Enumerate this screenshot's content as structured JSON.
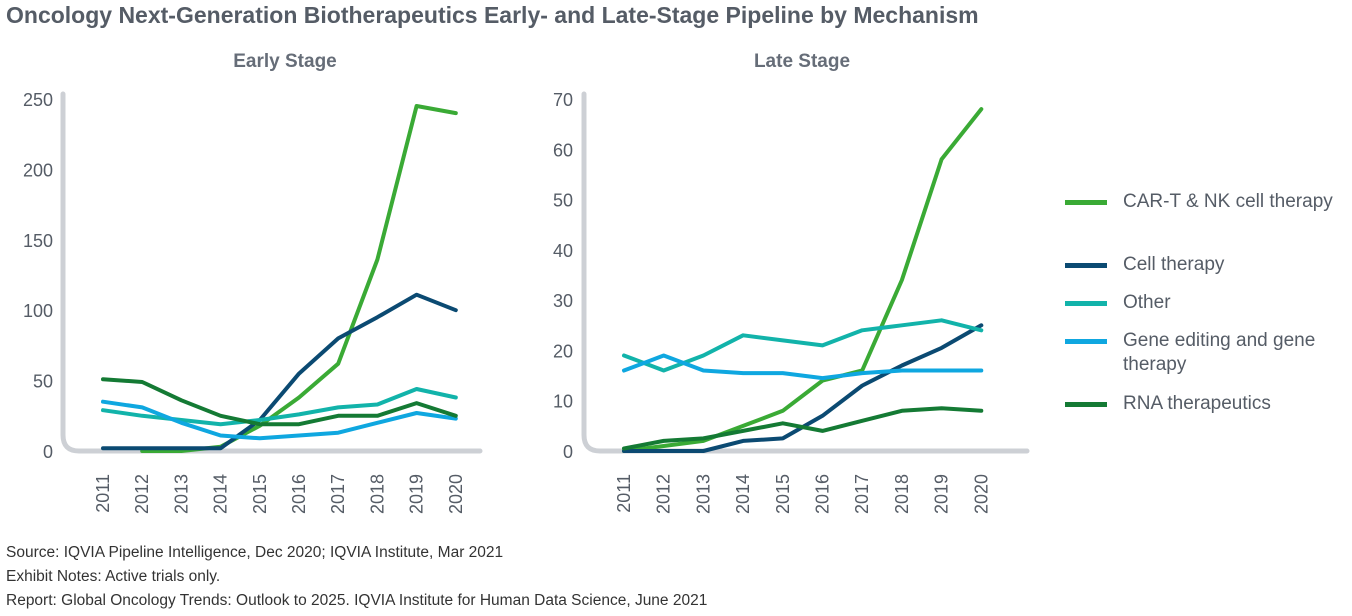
{
  "title": "Oncology Next-Generation Biotherapeutics Early- and Late-Stage Pipeline by Mechanism",
  "legend": [
    {
      "label": "CAR-T & NK cell therapy",
      "color": "#3aaa35"
    },
    {
      "label": "Cell therapy",
      "color": "#0b4a72"
    },
    {
      "label": "Other",
      "color": "#12b3aa"
    },
    {
      "label": "Gene editing and gene therapy",
      "color": "#0fa7e0"
    },
    {
      "label": "RNA therapeutics",
      "color": "#147a34"
    }
  ],
  "notes": {
    "source": "Source: IQVIA Pipeline Intelligence, Dec 2020; IQVIA Institute, Mar 2021",
    "exhibit": "Exhibit Notes: Active trials only.",
    "report": "Report: Global Oncology Trends: Outlook to 2025. IQVIA Institute for Human Data Science, June 2021"
  },
  "chart_data": [
    {
      "type": "line",
      "title": "Early Stage",
      "x": [
        "2011",
        "2012",
        "2013",
        "2014",
        "2015",
        "2016",
        "2017",
        "2018",
        "2019",
        "2020"
      ],
      "ylim": [
        0,
        250
      ],
      "yticks": [
        0,
        50,
        100,
        150,
        200,
        250
      ],
      "series": [
        {
          "name": "CAR-T & NK cell therapy",
          "color": "#3aaa35",
          "values": [
            null,
            0,
            0,
            3,
            18,
            38,
            62,
            136,
            245,
            240
          ]
        },
        {
          "name": "Cell therapy",
          "color": "#0b4a72",
          "values": [
            2,
            2,
            2,
            2,
            22,
            55,
            80,
            95,
            111,
            100
          ]
        },
        {
          "name": "Other",
          "color": "#12b3aa",
          "values": [
            29,
            25,
            22,
            19,
            22,
            26,
            31,
            33,
            44,
            38
          ]
        },
        {
          "name": "Gene editing and gene therapy",
          "color": "#0fa7e0",
          "values": [
            35,
            31,
            20,
            11,
            9,
            11,
            13,
            20,
            27,
            23
          ]
        },
        {
          "name": "RNA therapeutics",
          "color": "#147a34",
          "values": [
            51,
            49,
            36,
            25,
            19,
            19,
            25,
            25,
            34,
            25
          ]
        }
      ]
    },
    {
      "type": "line",
      "title": "Late Stage",
      "x": [
        "2011",
        "2012",
        "2013",
        "2014",
        "2015",
        "2016",
        "2017",
        "2018",
        "2019",
        "2020"
      ],
      "ylim": [
        0,
        70
      ],
      "yticks": [
        0,
        10,
        20,
        30,
        40,
        50,
        60,
        70
      ],
      "series": [
        {
          "name": "CAR-T & NK cell therapy",
          "color": "#3aaa35",
          "values": [
            0,
            1,
            2,
            5,
            8,
            14,
            16,
            34,
            58,
            68
          ]
        },
        {
          "name": "Cell therapy",
          "color": "#0b4a72",
          "values": [
            0,
            0,
            0,
            2,
            2.5,
            7,
            13,
            17,
            20.5,
            25
          ]
        },
        {
          "name": "Other",
          "color": "#12b3aa",
          "values": [
            19,
            16,
            19,
            23,
            22,
            21,
            24,
            25,
            26,
            24
          ]
        },
        {
          "name": "Gene editing and gene therapy",
          "color": "#0fa7e0",
          "values": [
            16,
            19,
            16,
            15.5,
            15.5,
            14.5,
            15.5,
            16,
            16,
            16
          ]
        },
        {
          "name": "RNA therapeutics",
          "color": "#147a34",
          "values": [
            0.5,
            2,
            2.5,
            4,
            5.5,
            4,
            6,
            8,
            8.5,
            8
          ]
        }
      ]
    }
  ]
}
